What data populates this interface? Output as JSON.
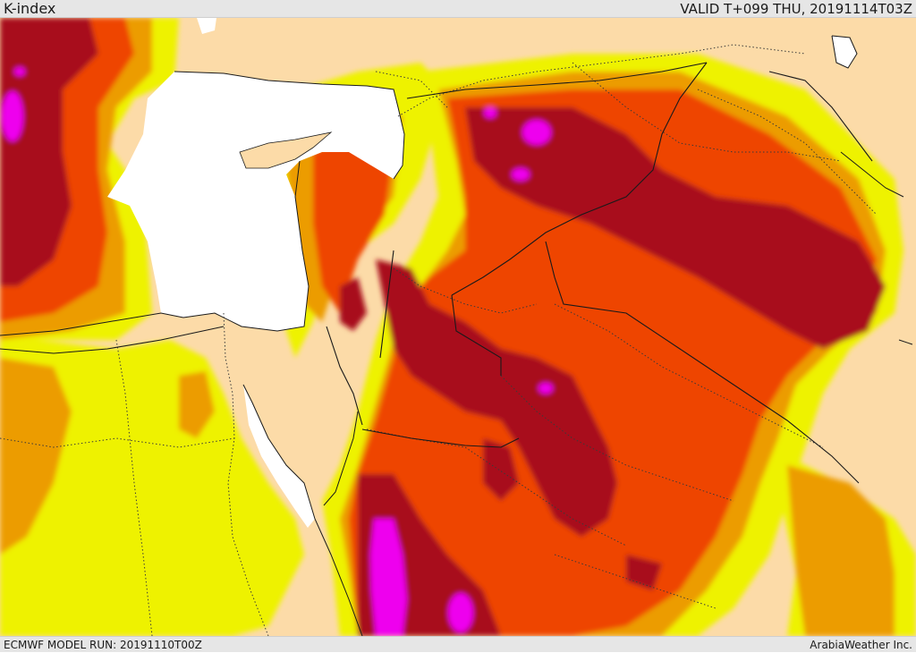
{
  "header": {
    "title": "K-index",
    "valid_time": "VALID T+099 THU, 20191114T03Z"
  },
  "footer": {
    "model_run": "ECMWF MODEL RUN: 20191110T00Z",
    "credit": "ArabiaWeather Inc."
  },
  "map": {
    "legend_colors": {
      "land": "#fcdba8",
      "sea": "#ffffff",
      "yellow": "#eef200",
      "orange": "#ec9c00",
      "red_orange": "#ee4406",
      "dark_red": "#a80e1e",
      "magenta": "#ee00ee"
    }
  }
}
